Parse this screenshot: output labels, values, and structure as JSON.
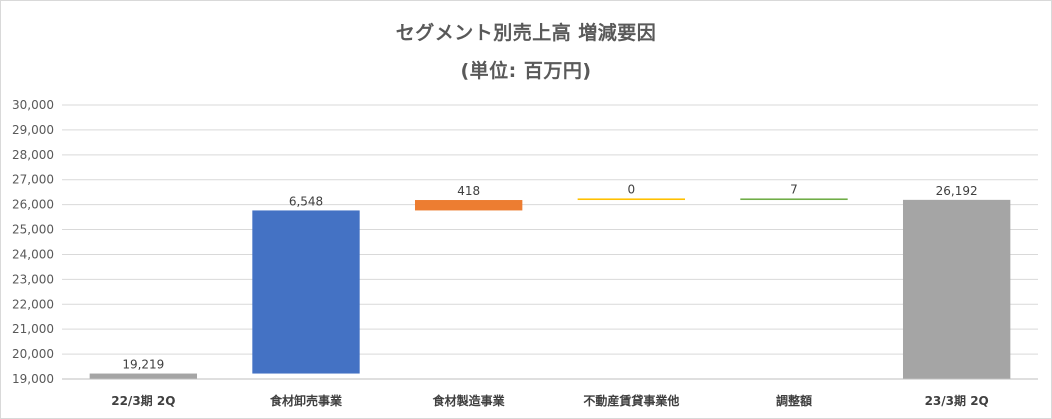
{
  "chart_data": {
    "type": "bar",
    "subtype": "waterfall",
    "title": "セグメント別売上高 増減要因",
    "subtitle": "(単位: 百万円)",
    "categories": [
      "22/3期 2Q",
      "食材卸売事業",
      "食材製造事業",
      "不動産賃貸事業他",
      "調整額",
      "23/3期 2Q"
    ],
    "values": [
      19219,
      6548,
      418,
      0,
      7,
      26192
    ],
    "data_labels": [
      "19,219",
      "6,548",
      "418",
      "0",
      "7",
      "26,192"
    ],
    "bar_kind": [
      "total",
      "delta",
      "delta",
      "delta",
      "delta",
      "total"
    ],
    "colors": [
      "#a5a5a5",
      "#4472c4",
      "#ed7d31",
      "#ffc000",
      "#70ad47",
      "#a5a5a5"
    ],
    "ylim": [
      19000,
      30000
    ],
    "yticks": [
      19000,
      20000,
      21000,
      22000,
      23000,
      24000,
      25000,
      26000,
      27000,
      28000,
      29000,
      30000
    ],
    "ytick_labels": [
      "19,000",
      "20,000",
      "21,000",
      "22,000",
      "23,000",
      "24,000",
      "25,000",
      "26,000",
      "27,000",
      "28,000",
      "29,000",
      "30,000"
    ],
    "grid": true,
    "legend": "none"
  }
}
